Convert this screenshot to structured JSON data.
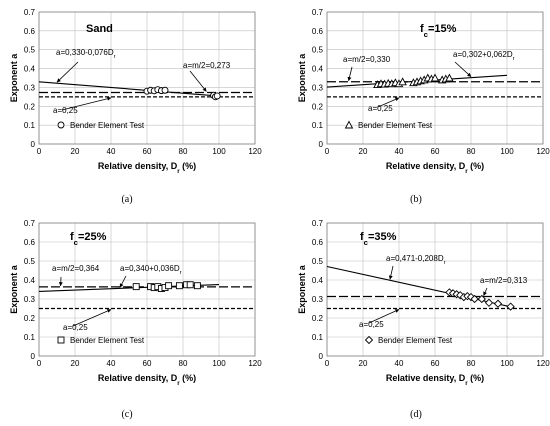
{
  "chart_data": [
    {
      "type": "scatter",
      "panel_label": "(a)",
      "title": "Sand",
      "title_sub": "",
      "title_suffix": "",
      "xlabel": "Relative density, D",
      "xlabel_sub": "r",
      "xlabel_suffix": " (%)",
      "ylabel": "Exponent a",
      "xlim": [
        0,
        120
      ],
      "ylim": [
        0,
        0.7
      ],
      "xticks": [
        "0",
        "20",
        "40",
        "60",
        "80",
        "100",
        "120"
      ],
      "yticks": [
        "0",
        "0.1",
        "0.2",
        "0.3",
        "0.4",
        "0.5",
        "0.6",
        "0.7"
      ],
      "marker": "circle",
      "legend": "Bender Element Test",
      "series": [
        {
          "name": "Bender Element Test",
          "x": [
            60,
            62,
            64,
            66,
            68,
            70,
            97,
            98,
            99
          ],
          "y": [
            0.28,
            0.285,
            0.282,
            0.288,
            0.283,
            0.285,
            0.258,
            0.25,
            0.255
          ]
        }
      ],
      "lines": [
        {
          "label": "a=0,330-0,076D",
          "label_sub": "r",
          "style": "solid",
          "x": [
            0,
            100
          ],
          "y": [
            0.33,
            0.254
          ]
        },
        {
          "label": "a=m/2=0,273",
          "label_sub": "",
          "style": "longdash",
          "x": [
            0,
            120
          ],
          "y": [
            0.273,
            0.273
          ]
        },
        {
          "label": "a=0,25",
          "label_sub": "",
          "style": "dash",
          "x": [
            0,
            120
          ],
          "y": [
            0.25,
            0.25
          ]
        }
      ]
    },
    {
      "type": "scatter",
      "panel_label": "(b)",
      "title": "f",
      "title_sub": "c",
      "title_suffix": "=15%",
      "xlabel": "Relative density, D",
      "xlabel_sub": "r",
      "xlabel_suffix": " (%)",
      "ylabel": "Exponent a",
      "xlim": [
        0,
        120
      ],
      "ylim": [
        0,
        0.7
      ],
      "xticks": [
        "0",
        "20",
        "40",
        "60",
        "80",
        "100",
        "120"
      ],
      "yticks": [
        "0",
        "0.1",
        "0.2",
        "0.3",
        "0.4",
        "0.5",
        "0.6",
        "0.7"
      ],
      "marker": "triangle",
      "legend": "Bender Element Test",
      "series": [
        {
          "name": "Bender Element Test",
          "x": [
            28,
            30,
            32,
            34,
            36,
            38,
            40,
            42,
            48,
            50,
            52,
            54,
            56,
            58,
            60,
            64,
            66,
            68
          ],
          "y": [
            0.315,
            0.32,
            0.318,
            0.322,
            0.32,
            0.325,
            0.32,
            0.33,
            0.325,
            0.33,
            0.335,
            0.34,
            0.35,
            0.345,
            0.35,
            0.34,
            0.345,
            0.35
          ]
        }
      ],
      "lines": [
        {
          "label": "a=m/2=0,330",
          "label_sub": "",
          "style": "longdash",
          "x": [
            0,
            120
          ],
          "y": [
            0.33,
            0.33
          ]
        },
        {
          "label": "a=0,302+0,062D",
          "label_sub": "r",
          "style": "solid",
          "x": [
            0,
            100
          ],
          "y": [
            0.302,
            0.364
          ]
        },
        {
          "label": "a=0,25",
          "label_sub": "",
          "style": "dash",
          "x": [
            0,
            120
          ],
          "y": [
            0.25,
            0.25
          ]
        }
      ]
    },
    {
      "type": "scatter",
      "panel_label": "(c)",
      "title": "f",
      "title_sub": "c",
      "title_suffix": "=25%",
      "xlabel": "Relative density, D",
      "xlabel_sub": "r",
      "xlabel_suffix": " (%)",
      "ylabel": "Exponent a",
      "xlim": [
        0,
        120
      ],
      "ylim": [
        0,
        0.7
      ],
      "xticks": [
        "0",
        "20",
        "40",
        "60",
        "80",
        "100",
        "120"
      ],
      "yticks": [
        "0",
        "0.1",
        "0.2",
        "0.3",
        "0.4",
        "0.5",
        "0.6",
        "0.7"
      ],
      "marker": "square",
      "legend": "Bender Element Test",
      "series": [
        {
          "name": "Bender Element Test",
          "x": [
            54,
            62,
            64,
            66,
            68,
            70,
            72,
            78,
            82,
            84,
            88
          ],
          "y": [
            0.365,
            0.365,
            0.36,
            0.365,
            0.355,
            0.36,
            0.37,
            0.37,
            0.375,
            0.375,
            0.37
          ]
        }
      ],
      "lines": [
        {
          "label": "a=m/2=0,364",
          "label_sub": "",
          "style": "longdash",
          "x": [
            0,
            120
          ],
          "y": [
            0.364,
            0.364
          ]
        },
        {
          "label": "a=0,340+0,036D",
          "label_sub": "r",
          "style": "solid",
          "x": [
            0,
            100
          ],
          "y": [
            0.34,
            0.376
          ]
        },
        {
          "label": "a=0,25",
          "label_sub": "",
          "style": "dash",
          "x": [
            0,
            120
          ],
          "y": [
            0.25,
            0.25
          ]
        }
      ]
    },
    {
      "type": "scatter",
      "panel_label": "(d)",
      "title": "f",
      "title_sub": "c",
      "title_suffix": "=35%",
      "xlabel": "Relative density, D",
      "xlabel_sub": "r",
      "xlabel_suffix": " (%)",
      "ylabel": "Exponent a",
      "xlim": [
        0,
        120
      ],
      "ylim": [
        0,
        0.7
      ],
      "xticks": [
        "0",
        "20",
        "40",
        "60",
        "80",
        "100",
        "120"
      ],
      "yticks": [
        "0",
        "0.1",
        "0.2",
        "0.3",
        "0.4",
        "0.5",
        "0.6",
        "0.7"
      ],
      "marker": "diamond",
      "legend": "Bender Element Test",
      "series": [
        {
          "name": "Bender Element Test",
          "x": [
            68,
            70,
            72,
            74,
            76,
            78,
            80,
            82,
            86,
            90,
            95,
            102
          ],
          "y": [
            0.335,
            0.33,
            0.325,
            0.32,
            0.31,
            0.315,
            0.31,
            0.3,
            0.3,
            0.28,
            0.275,
            0.26
          ]
        }
      ],
      "lines": [
        {
          "label": "a=0,471-0,208D",
          "label_sub": "r",
          "style": "solid",
          "x": [
            0,
            104
          ],
          "y": [
            0.471,
            0.255
          ]
        },
        {
          "label": "a=m/2=0,313",
          "label_sub": "",
          "style": "longdash",
          "x": [
            0,
            120
          ],
          "y": [
            0.313,
            0.313
          ]
        },
        {
          "label": "a=0,25",
          "label_sub": "",
          "style": "dash",
          "x": [
            0,
            120
          ],
          "y": [
            0.25,
            0.25
          ]
        }
      ]
    }
  ]
}
